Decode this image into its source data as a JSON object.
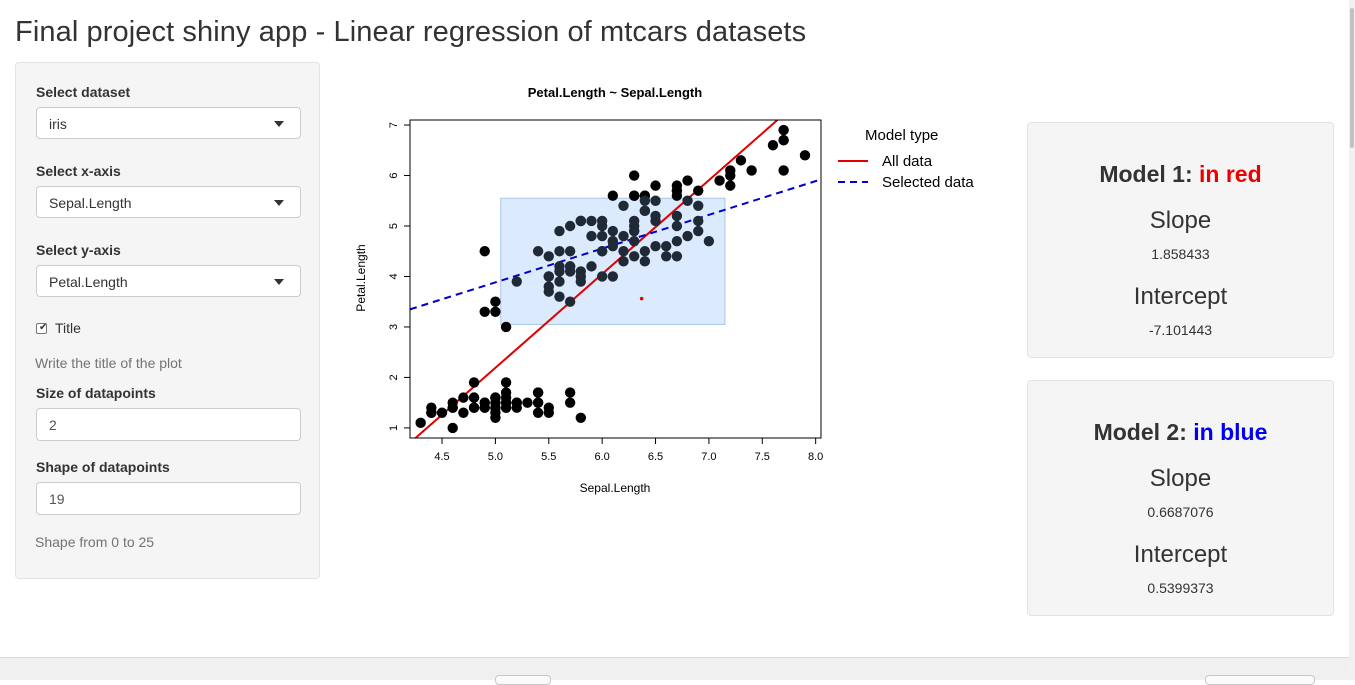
{
  "app": {
    "title": "Final project shiny app - Linear regression of mtcars datasets"
  },
  "sidebar": {
    "dataset_label": "Select dataset",
    "dataset_value": "iris",
    "xaxis_label": "Select x-axis",
    "xaxis_value": "Sepal.Length",
    "yaxis_label": "Select y-axis",
    "yaxis_value": "Petal.Length",
    "title_checkbox_label": "Title",
    "title_checked": true,
    "title_placeholder": "Write the title of the plot",
    "size_label": "Size of datapoints",
    "size_value": "2",
    "shape_label": "Shape of datapoints",
    "shape_value": "19",
    "shape_help": "Shape from 0 to 25"
  },
  "chart_data": {
    "type": "scatter",
    "title": "Petal.Length ~ Sepal.Length",
    "xlabel": "Sepal.Length",
    "ylabel": "Petal.Length",
    "xlim": [
      4.2,
      8.05
    ],
    "ylim": [
      0.8,
      7.1
    ],
    "xticks": [
      4.5,
      5.0,
      5.5,
      6.0,
      6.5,
      7.0,
      7.5,
      8.0
    ],
    "yticks": [
      1,
      2,
      3,
      4,
      5,
      6,
      7
    ],
    "xtick_labels": [
      "4.5",
      "5.0",
      "5.5",
      "6.0",
      "6.5",
      "7.0",
      "7.5",
      "8.0"
    ],
    "ytick_labels": [
      "1",
      "2",
      "3",
      "4",
      "5",
      "6",
      "7"
    ],
    "point_color": "#000000",
    "selection_box": {
      "x": [
        5.05,
        7.15
      ],
      "y": [
        3.05,
        5.55
      ],
      "color": "#dbeafc"
    },
    "highlight_point": {
      "x": 6.37,
      "y": 3.56,
      "color": "#e00000"
    },
    "legend": {
      "title": "Model type",
      "placement": "right",
      "entries": [
        {
          "label": "All data",
          "color": "#e00000",
          "dash": "solid"
        },
        {
          "label": "Selected data",
          "color": "#0000cc",
          "dash": "dashed"
        }
      ]
    },
    "lines": [
      {
        "name": "All data",
        "slope": 1.858433,
        "intercept": -7.101443,
        "color": "#e00000",
        "dash": "solid"
      },
      {
        "name": "Selected data",
        "slope": 0.6687076,
        "intercept": 0.5399373,
        "color": "#0000cc",
        "dash": "dashed"
      }
    ],
    "points": [
      [
        5.1,
        1.4
      ],
      [
        4.9,
        1.4
      ],
      [
        4.7,
        1.3
      ],
      [
        4.6,
        1.5
      ],
      [
        5.0,
        1.4
      ],
      [
        5.4,
        1.7
      ],
      [
        4.6,
        1.4
      ],
      [
        5.0,
        1.5
      ],
      [
        4.4,
        1.4
      ],
      [
        4.9,
        1.5
      ],
      [
        5.4,
        1.5
      ],
      [
        4.8,
        1.6
      ],
      [
        4.8,
        1.4
      ],
      [
        4.3,
        1.1
      ],
      [
        5.8,
        1.2
      ],
      [
        5.7,
        1.5
      ],
      [
        5.4,
        1.3
      ],
      [
        5.1,
        1.4
      ],
      [
        5.7,
        1.7
      ],
      [
        5.1,
        1.5
      ],
      [
        5.4,
        1.7
      ],
      [
        5.1,
        1.5
      ],
      [
        4.6,
        1.0
      ],
      [
        5.1,
        1.7
      ],
      [
        4.8,
        1.9
      ],
      [
        5.0,
        1.6
      ],
      [
        5.0,
        1.6
      ],
      [
        5.2,
        1.5
      ],
      [
        5.2,
        1.4
      ],
      [
        4.7,
        1.6
      ],
      [
        4.8,
        1.6
      ],
      [
        5.4,
        1.5
      ],
      [
        5.2,
        1.5
      ],
      [
        5.5,
        1.4
      ],
      [
        4.9,
        1.5
      ],
      [
        5.0,
        1.2
      ],
      [
        5.5,
        1.3
      ],
      [
        4.9,
        1.4
      ],
      [
        4.4,
        1.3
      ],
      [
        5.1,
        1.5
      ],
      [
        5.0,
        1.3
      ],
      [
        4.5,
        1.3
      ],
      [
        4.4,
        1.3
      ],
      [
        5.0,
        1.6
      ],
      [
        5.1,
        1.9
      ],
      [
        4.8,
        1.4
      ],
      [
        5.1,
        1.6
      ],
      [
        4.6,
        1.4
      ],
      [
        5.3,
        1.5
      ],
      [
        5.0,
        1.4
      ],
      [
        7.0,
        4.7
      ],
      [
        6.4,
        4.5
      ],
      [
        6.9,
        4.9
      ],
      [
        5.5,
        4.0
      ],
      [
        6.5,
        4.6
      ],
      [
        5.7,
        4.5
      ],
      [
        6.3,
        4.7
      ],
      [
        4.9,
        3.3
      ],
      [
        6.6,
        4.6
      ],
      [
        5.2,
        3.9
      ],
      [
        5.0,
        3.5
      ],
      [
        5.9,
        4.2
      ],
      [
        6.0,
        4.0
      ],
      [
        6.1,
        4.7
      ],
      [
        5.6,
        3.6
      ],
      [
        6.7,
        4.4
      ],
      [
        5.6,
        4.5
      ],
      [
        5.8,
        4.1
      ],
      [
        6.2,
        4.5
      ],
      [
        5.6,
        3.9
      ],
      [
        5.9,
        4.8
      ],
      [
        6.1,
        4.0
      ],
      [
        6.3,
        4.9
      ],
      [
        6.1,
        4.7
      ],
      [
        6.4,
        4.3
      ],
      [
        6.6,
        4.4
      ],
      [
        6.8,
        4.8
      ],
      [
        6.7,
        5.0
      ],
      [
        6.0,
        4.5
      ],
      [
        5.7,
        3.5
      ],
      [
        5.5,
        3.8
      ],
      [
        5.5,
        3.7
      ],
      [
        5.8,
        3.9
      ],
      [
        6.0,
        5.1
      ],
      [
        5.4,
        4.5
      ],
      [
        6.0,
        4.5
      ],
      [
        6.7,
        4.7
      ],
      [
        6.3,
        4.4
      ],
      [
        5.6,
        4.1
      ],
      [
        5.5,
        4.0
      ],
      [
        5.5,
        4.4
      ],
      [
        6.1,
        4.6
      ],
      [
        5.8,
        4.0
      ],
      [
        5.0,
        3.3
      ],
      [
        5.6,
        4.2
      ],
      [
        5.7,
        4.2
      ],
      [
        5.7,
        4.2
      ],
      [
        6.2,
        4.3
      ],
      [
        5.1,
        3.0
      ],
      [
        5.7,
        4.1
      ],
      [
        6.3,
        6.0
      ],
      [
        5.8,
        5.1
      ],
      [
        7.1,
        5.9
      ],
      [
        6.3,
        5.6
      ],
      [
        6.5,
        5.8
      ],
      [
        7.6,
        6.6
      ],
      [
        4.9,
        4.5
      ],
      [
        7.3,
        6.3
      ],
      [
        6.7,
        5.8
      ],
      [
        7.2,
        6.1
      ],
      [
        6.5,
        5.1
      ],
      [
        6.4,
        5.3
      ],
      [
        6.8,
        5.5
      ],
      [
        5.7,
        5.0
      ],
      [
        5.8,
        5.1
      ],
      [
        6.4,
        5.3
      ],
      [
        6.5,
        5.5
      ],
      [
        7.7,
        6.7
      ],
      [
        7.7,
        6.9
      ],
      [
        6.0,
        5.0
      ],
      [
        6.9,
        5.7
      ],
      [
        5.6,
        4.9
      ],
      [
        7.7,
        6.7
      ],
      [
        6.3,
        4.9
      ],
      [
        6.7,
        5.7
      ],
      [
        7.2,
        6.0
      ],
      [
        6.2,
        4.8
      ],
      [
        6.1,
        4.9
      ],
      [
        6.4,
        5.6
      ],
      [
        7.2,
        5.8
      ],
      [
        7.4,
        6.1
      ],
      [
        7.9,
        6.4
      ],
      [
        6.4,
        5.6
      ],
      [
        6.3,
        5.1
      ],
      [
        6.1,
        5.6
      ],
      [
        7.7,
        6.1
      ],
      [
        6.3,
        5.6
      ],
      [
        6.4,
        5.5
      ],
      [
        6.0,
        4.8
      ],
      [
        6.9,
        5.4
      ],
      [
        6.7,
        5.6
      ],
      [
        6.9,
        5.1
      ],
      [
        5.8,
        5.1
      ],
      [
        6.8,
        5.9
      ],
      [
        6.7,
        5.7
      ],
      [
        6.7,
        5.2
      ],
      [
        6.3,
        5.0
      ],
      [
        6.5,
        5.2
      ],
      [
        6.2,
        5.4
      ],
      [
        5.9,
        5.1
      ]
    ]
  },
  "models": [
    {
      "head_prefix": "Model 1:",
      "head_color_text": "in red",
      "head_color": "#ee0000",
      "slope_label": "Slope",
      "slope_value": "1.858433",
      "intercept_label": "Intercept",
      "intercept_value": "-7.101443"
    },
    {
      "head_prefix": "Model 2:",
      "head_color_text": "in blue",
      "head_color": "#0000ee",
      "slope_label": "Slope",
      "slope_value": "0.6687076",
      "intercept_label": "Intercept",
      "intercept_value": "0.5399373"
    }
  ]
}
